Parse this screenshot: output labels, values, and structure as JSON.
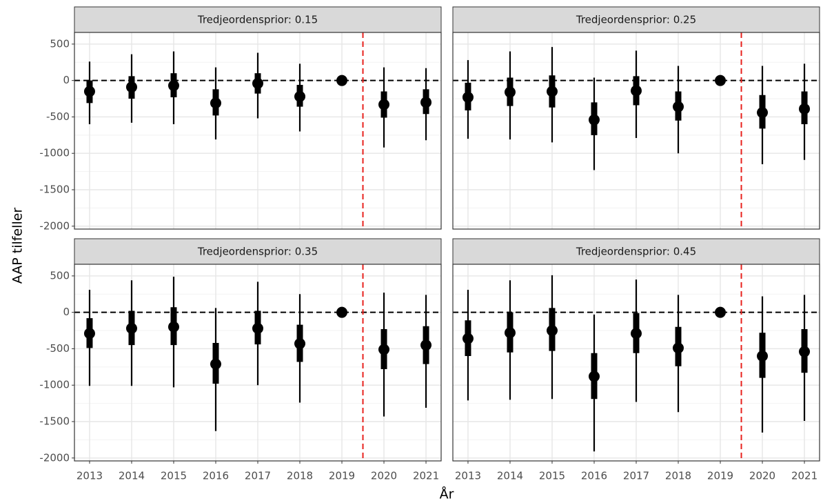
{
  "chart_data": {
    "type": "pointinterval",
    "ylabel": "AAP tilfeller",
    "xlabel": "År",
    "x": [
      2013,
      2014,
      2015,
      2016,
      2017,
      2018,
      2019,
      2020,
      2021
    ],
    "xlim": [
      2012.64,
      2021.36
    ],
    "xticks": [
      2013,
      2014,
      2015,
      2016,
      2017,
      2018,
      2019,
      2020,
      2021
    ],
    "ylim": [
      -2040,
      660
    ],
    "yticks": [
      500,
      0,
      -500,
      -1000,
      -1500,
      -2000
    ],
    "y_minor_ticks": [
      250,
      -250,
      -750,
      -1250,
      -1750
    ],
    "grid": true,
    "hline": 0,
    "vline": {
      "x": 2019.5,
      "color": "#e8201c"
    },
    "color": "#000000",
    "facets": [
      {
        "title": "Tredjeordensprior: 0.15",
        "values": [
          -150,
          -90,
          -70,
          -310,
          -40,
          -220,
          0,
          -330,
          -300
        ],
        "thick_high": [
          0,
          60,
          100,
          -120,
          100,
          -60,
          null,
          -150,
          -120
        ],
        "thick_low": [
          -310,
          -250,
          -230,
          -480,
          -180,
          -360,
          null,
          -510,
          -460
        ],
        "thin_high": [
          260,
          360,
          400,
          180,
          380,
          230,
          null,
          180,
          170
        ],
        "thin_low": [
          -600,
          -580,
          -600,
          -810,
          -520,
          -700,
          null,
          -920,
          -820
        ]
      },
      {
        "title": "Tredjeordensprior: 0.25",
        "values": [
          -230,
          -160,
          -150,
          -540,
          -140,
          -360,
          0,
          -440,
          -390
        ],
        "thick_high": [
          -30,
          40,
          70,
          -300,
          60,
          -150,
          null,
          -200,
          -150
        ],
        "thick_low": [
          -410,
          -350,
          -370,
          -750,
          -340,
          -550,
          null,
          -660,
          -600
        ],
        "thin_high": [
          280,
          400,
          460,
          40,
          410,
          200,
          null,
          200,
          230
        ],
        "thin_low": [
          -800,
          -810,
          -850,
          -1230,
          -790,
          -1000,
          null,
          -1150,
          -1090
        ]
      },
      {
        "title": "Tredjeordensprior: 0.35",
        "values": [
          -290,
          -220,
          -200,
          -710,
          -220,
          -430,
          0,
          -510,
          -450
        ],
        "thick_high": [
          -80,
          20,
          70,
          -420,
          20,
          -170,
          null,
          -230,
          -190
        ],
        "thick_low": [
          -490,
          -450,
          -450,
          -980,
          -440,
          -680,
          null,
          -780,
          -710
        ],
        "thin_high": [
          310,
          440,
          490,
          60,
          420,
          250,
          null,
          270,
          240
        ],
        "thin_low": [
          -1010,
          -1010,
          -1030,
          -1630,
          -1000,
          -1240,
          null,
          -1430,
          -1310
        ]
      },
      {
        "title": "Tredjeordensprior: 0.45",
        "values": [
          -360,
          -280,
          -250,
          -880,
          -290,
          -490,
          0,
          -600,
          -540
        ],
        "thick_high": [
          -110,
          0,
          60,
          -560,
          -10,
          -200,
          null,
          -280,
          -230
        ],
        "thick_low": [
          -600,
          -550,
          -530,
          -1190,
          -560,
          -740,
          null,
          -900,
          -830
        ],
        "thin_high": [
          310,
          440,
          510,
          -30,
          450,
          240,
          null,
          220,
          240
        ],
        "thin_low": [
          -1210,
          -1200,
          -1190,
          -1910,
          -1230,
          -1370,
          null,
          -1650,
          -1490
        ]
      }
    ]
  }
}
